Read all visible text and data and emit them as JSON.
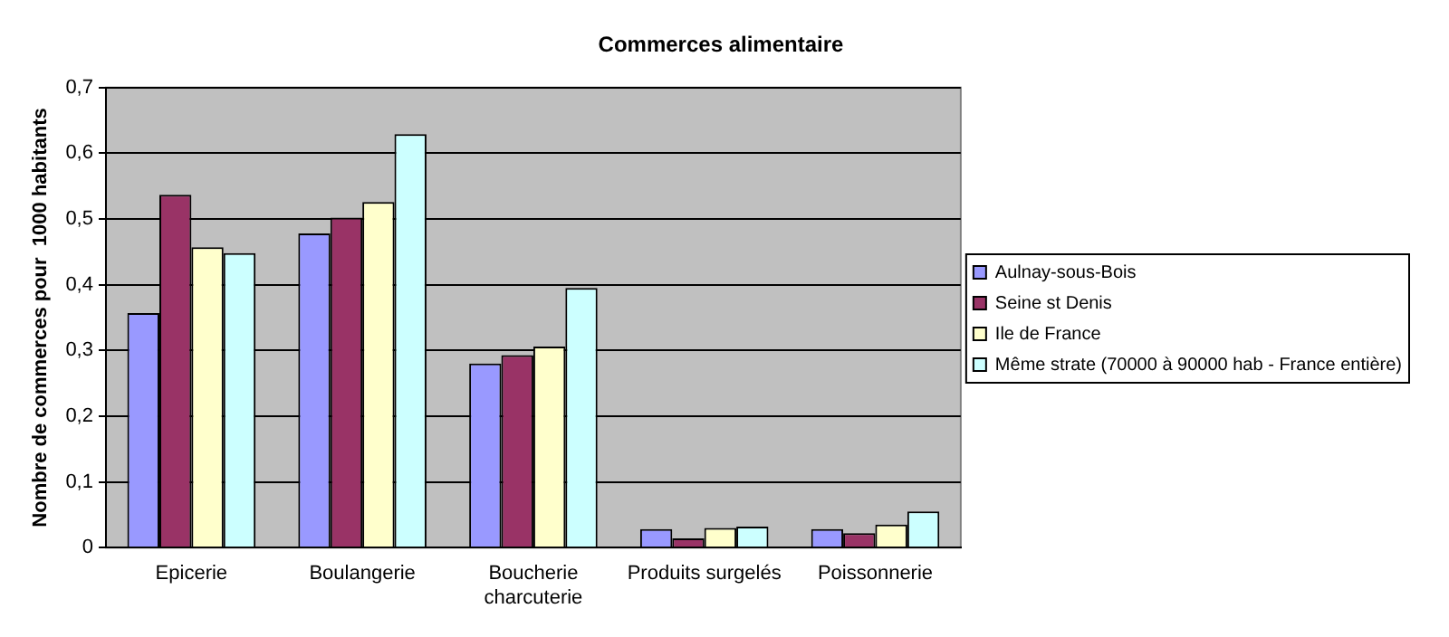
{
  "chart_data": {
    "type": "bar",
    "title": "Commerces alimentaire",
    "ylabel": "Nombre de commerces pour  1000 habitants",
    "categories": [
      "Epicerie",
      "Boulangerie",
      "Boucherie charcuterie",
      "Produits surgelés",
      "Poissonnerie"
    ],
    "series": [
      {
        "name": "Aulnay-sous-Bois",
        "color": "#9999ff",
        "values": [
          0.357,
          0.478,
          0.28,
          0.028,
          0.028
        ]
      },
      {
        "name": "Seine st Denis",
        "color": "#993366",
        "values": [
          0.537,
          0.502,
          0.293,
          0.014,
          0.022
        ]
      },
      {
        "name": "Ile de France",
        "color": "#ffffcc",
        "values": [
          0.457,
          0.526,
          0.306,
          0.03,
          0.035
        ]
      },
      {
        "name": "Même strate (70000 à 90000 hab - France entière)",
        "color": "#ccffff",
        "values": [
          0.448,
          0.629,
          0.395,
          0.032,
          0.055
        ]
      }
    ],
    "ylim": [
      0,
      0.7
    ],
    "yticks": [
      0,
      {
        "value": 0.1,
        "label": "0,1"
      },
      {
        "value": 0.2,
        "label": "0,2"
      },
      {
        "value": 0.3,
        "label": "0,3"
      },
      {
        "value": 0.4,
        "label": "0,4"
      },
      {
        "value": 0.5,
        "label": "0,5"
      },
      {
        "value": 0.6,
        "label": "0,6"
      },
      {
        "value": 0.7,
        "label": "0,7"
      }
    ],
    "grid": "y",
    "legend": "right"
  }
}
